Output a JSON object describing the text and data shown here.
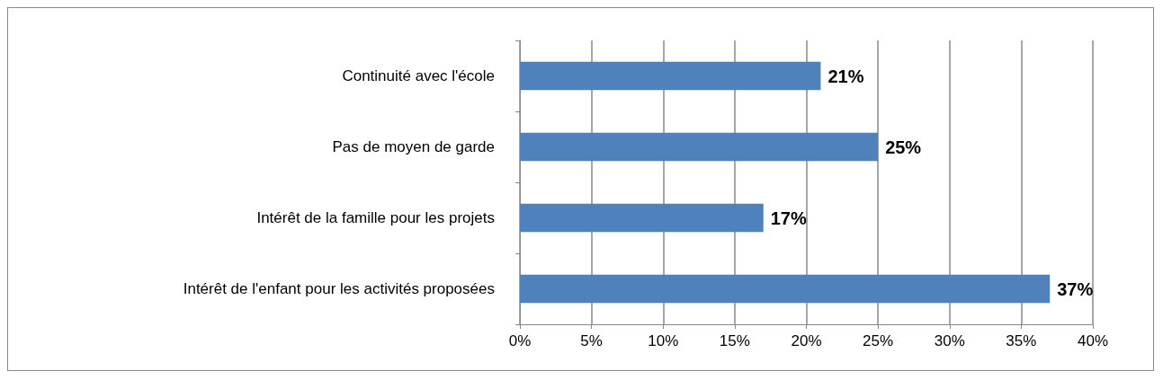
{
  "chart_data": {
    "type": "bar",
    "orientation": "horizontal",
    "categories": [
      "Continuité avec l'école",
      "Pas de moyen de garde",
      "Intérêt de la famille pour les projets",
      "Intérêt de l'enfant pour les activités proposées"
    ],
    "values": [
      21,
      25,
      17,
      37
    ],
    "color": "#4f81bd",
    "value_labels": [
      "21%",
      "25%",
      "17%",
      "37%"
    ],
    "xlim": [
      0,
      40
    ],
    "xticks": [
      {
        "value": 0,
        "label": "0%"
      },
      {
        "value": 5,
        "label": "5%"
      },
      {
        "value": 10,
        "label": "10%"
      },
      {
        "value": 15,
        "label": "15%"
      },
      {
        "value": 20,
        "label": "20%"
      },
      {
        "value": 25,
        "label": "25%"
      },
      {
        "value": 30,
        "label": "30%"
      },
      {
        "value": 35,
        "label": "35%"
      },
      {
        "value": 40,
        "label": "40%"
      }
    ],
    "grid": "x"
  }
}
